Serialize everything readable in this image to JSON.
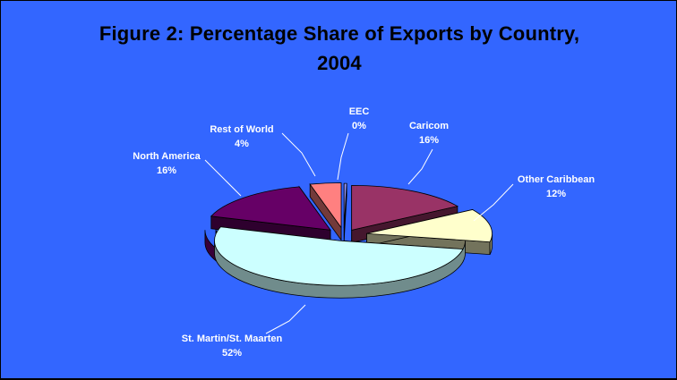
{
  "chart_data": {
    "type": "pie",
    "style": "3d-exploded",
    "title_line1": "Figure 2: Percentage Share of Exports by Country,",
    "title_line2": "2004",
    "slices": [
      {
        "label": "Caricom",
        "value": 16,
        "value_label": "16%",
        "color": "#993366"
      },
      {
        "label": "Other Caribbean",
        "value": 12,
        "value_label": "12%",
        "color": "#FFFFCC"
      },
      {
        "label": "St. Martin/St. Maarten",
        "value": 52,
        "value_label": "52%",
        "color": "#CCFFFF"
      },
      {
        "label": "North America",
        "value": 16,
        "value_label": "16%",
        "color": "#660066"
      },
      {
        "label": "Rest of World",
        "value": 4,
        "value_label": "4%",
        "color": "#FF8080"
      },
      {
        "label": "EEC",
        "value": 0,
        "value_label": "0%",
        "color": "#9999FF"
      }
    ],
    "legend": "none",
    "background_color": "#3366FF"
  }
}
